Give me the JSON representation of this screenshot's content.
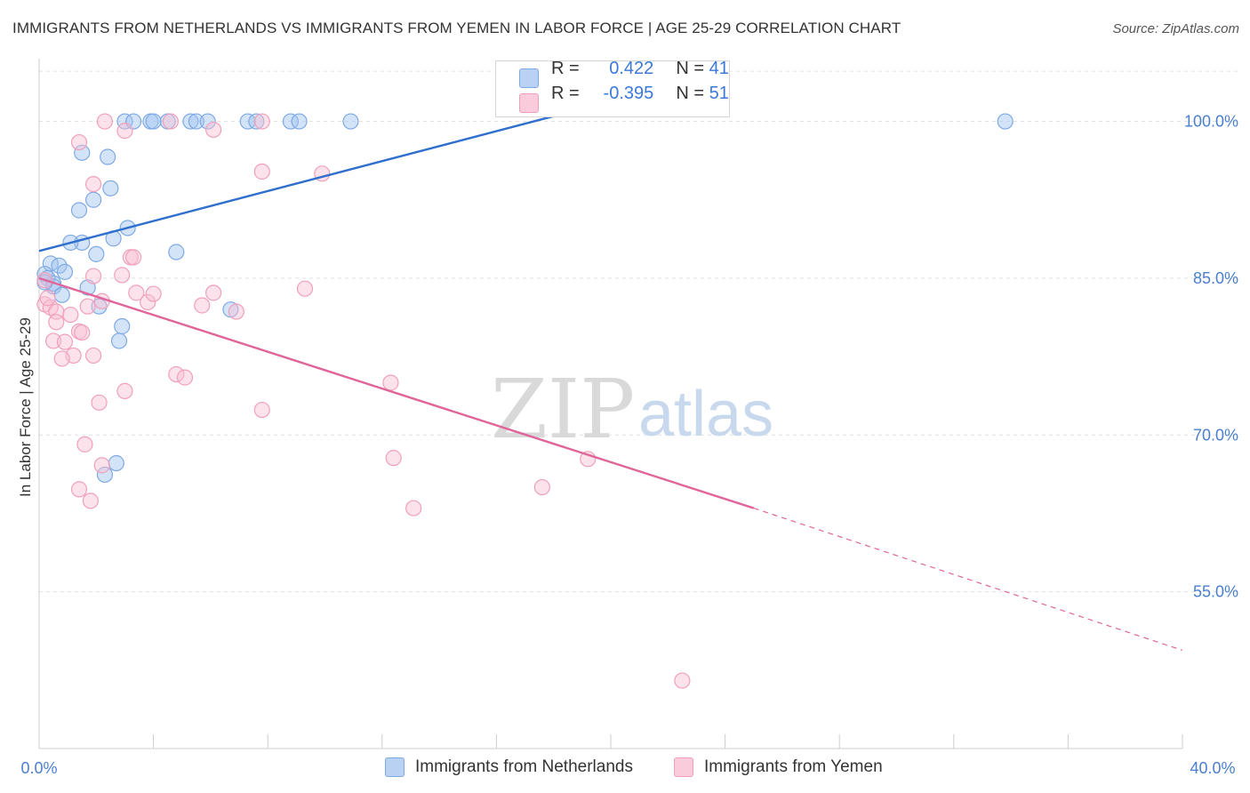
{
  "title": "IMMIGRANTS FROM NETHERLANDS VS IMMIGRANTS FROM YEMEN IN LABOR FORCE | AGE 25-29 CORRELATION CHART",
  "source": "Source: ZipAtlas.com",
  "watermark": {
    "zip": "ZIP",
    "atlas": "atlas"
  },
  "legend": {
    "rows": [
      {
        "r_label": "R =",
        "r_value": "0.422",
        "n_label": "N =",
        "n_value": "41"
      },
      {
        "r_label": "R =",
        "r_value": "-0.395",
        "n_label": "N =",
        "n_value": "51"
      }
    ]
  },
  "chart_data": {
    "type": "scatter",
    "title": "IMMIGRANTS FROM NETHERLANDS VS IMMIGRANTS FROM YEMEN IN LABOR FORCE | AGE 25-29 CORRELATION CHART",
    "xlabel": "",
    "ylabel": "In Labor Force | Age 25-29",
    "xlim": [
      0,
      40
    ],
    "ylim": [
      40,
      106
    ],
    "x_tick_labels": [
      "0.0%",
      "40.0%"
    ],
    "y_ticks": [
      55,
      70,
      85,
      100
    ],
    "y_tick_labels": [
      "55.0%",
      "70.0%",
      "85.0%",
      "100.0%"
    ],
    "grid": true,
    "legend_position": "top-center",
    "colors": {
      "netherlands": "#7fa9e3",
      "yemen": "#f0a0bb",
      "netherlands_line": "#2f6fce",
      "yemen_line": "#e0669a"
    },
    "series": [
      {
        "name": "Immigrants from Netherlands",
        "r": 0.422,
        "n": 41,
        "trend": {
          "x0": 0,
          "y0": 87.6,
          "x1": 18.0,
          "y1": 100.5,
          "dashed_to": null
        },
        "points": [
          [
            3.0,
            100
          ],
          [
            3.3,
            100
          ],
          [
            3.9,
            100
          ],
          [
            4.0,
            100
          ],
          [
            4.5,
            100
          ],
          [
            5.3,
            100
          ],
          [
            5.5,
            100
          ],
          [
            5.9,
            100
          ],
          [
            7.3,
            100
          ],
          [
            7.6,
            100
          ],
          [
            8.8,
            100
          ],
          [
            9.1,
            100
          ],
          [
            10.9,
            100
          ],
          [
            33.8,
            100
          ],
          [
            1.5,
            97.0
          ],
          [
            2.4,
            96.6
          ],
          [
            2.5,
            93.6
          ],
          [
            1.9,
            92.5
          ],
          [
            1.4,
            91.5
          ],
          [
            3.1,
            89.8
          ],
          [
            2.6,
            88.8
          ],
          [
            1.5,
            88.4
          ],
          [
            1.1,
            88.4
          ],
          [
            2.0,
            87.3
          ],
          [
            4.8,
            87.5
          ],
          [
            0.4,
            86.4
          ],
          [
            0.7,
            86.2
          ],
          [
            0.9,
            85.6
          ],
          [
            0.2,
            85.4
          ],
          [
            0.3,
            85.0
          ],
          [
            0.5,
            84.5
          ],
          [
            0.5,
            84.2
          ],
          [
            1.7,
            84.1
          ],
          [
            0.8,
            83.4
          ],
          [
            0.2,
            84.6
          ],
          [
            2.1,
            82.3
          ],
          [
            6.7,
            82.0
          ],
          [
            2.9,
            80.4
          ],
          [
            2.8,
            79.0
          ],
          [
            2.7,
            67.3
          ],
          [
            2.3,
            66.2
          ]
        ]
      },
      {
        "name": "Immigrants from Yemen",
        "r": -0.395,
        "n": 51,
        "trend": {
          "x0": 0,
          "y0": 85.0,
          "x1": 25.0,
          "y1": 63.0,
          "dashed_x1": 40.0,
          "dashed_y1": 49.4
        },
        "points": [
          [
            2.3,
            100
          ],
          [
            4.6,
            100
          ],
          [
            7.8,
            100
          ],
          [
            3.0,
            99.1
          ],
          [
            6.1,
            99.2
          ],
          [
            1.4,
            98.0
          ],
          [
            7.8,
            95.2
          ],
          [
            9.9,
            95.0
          ],
          [
            1.9,
            94.0
          ],
          [
            3.2,
            87.0
          ],
          [
            3.3,
            87.0
          ],
          [
            9.3,
            84.0
          ],
          [
            6.1,
            83.6
          ],
          [
            3.4,
            83.6
          ],
          [
            2.2,
            82.8
          ],
          [
            3.8,
            82.7
          ],
          [
            5.7,
            82.4
          ],
          [
            0.2,
            82.5
          ],
          [
            0.4,
            82.2
          ],
          [
            1.7,
            82.3
          ],
          [
            0.6,
            81.8
          ],
          [
            6.9,
            81.8
          ],
          [
            1.1,
            81.5
          ],
          [
            0.6,
            80.8
          ],
          [
            1.4,
            79.9
          ],
          [
            1.5,
            79.8
          ],
          [
            0.5,
            79.0
          ],
          [
            0.9,
            78.9
          ],
          [
            1.2,
            77.6
          ],
          [
            1.9,
            77.6
          ],
          [
            0.8,
            77.3
          ],
          [
            4.8,
            75.8
          ],
          [
            5.1,
            75.5
          ],
          [
            12.3,
            75.0
          ],
          [
            3.0,
            74.2
          ],
          [
            2.1,
            73.1
          ],
          [
            7.8,
            72.4
          ],
          [
            1.6,
            69.1
          ],
          [
            12.4,
            67.8
          ],
          [
            19.2,
            67.7
          ],
          [
            2.2,
            67.1
          ],
          [
            1.4,
            64.8
          ],
          [
            17.6,
            65.0
          ],
          [
            1.8,
            63.7
          ],
          [
            13.1,
            63.0
          ],
          [
            22.5,
            46.5
          ],
          [
            0.2,
            84.8
          ],
          [
            0.3,
            83.1
          ],
          [
            1.9,
            85.2
          ],
          [
            2.9,
            85.3
          ],
          [
            4.0,
            83.5
          ]
        ]
      }
    ]
  },
  "bottom_legend": {
    "items": [
      {
        "label": "Immigrants from Netherlands"
      },
      {
        "label": "Immigrants from Yemen"
      }
    ]
  }
}
